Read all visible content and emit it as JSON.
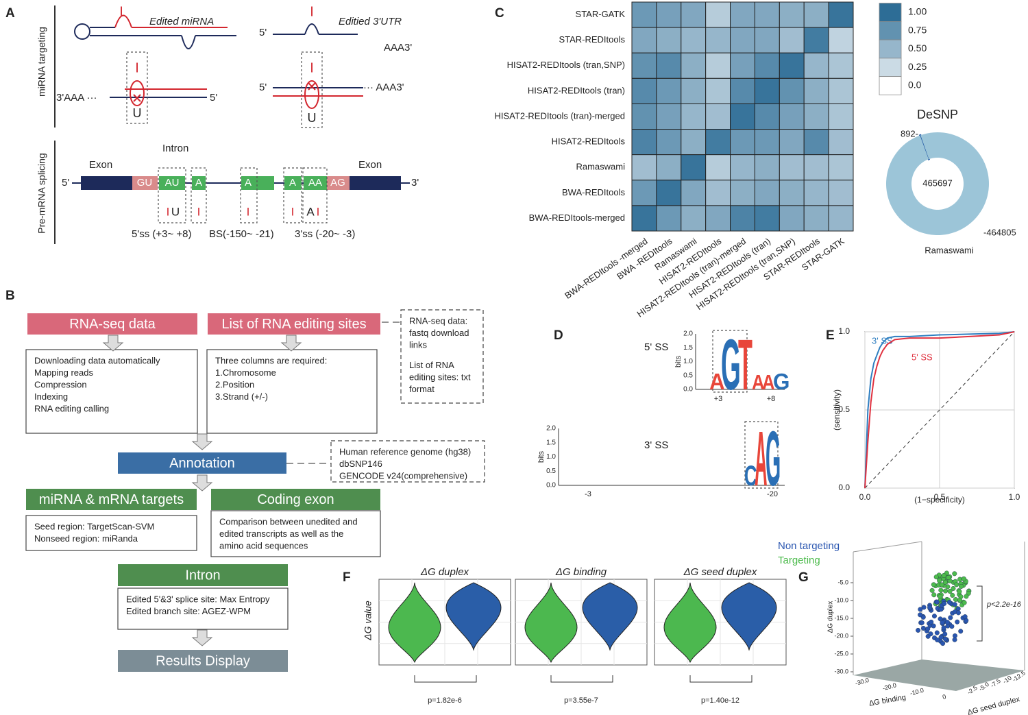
{
  "panel_labels": [
    "A",
    "B",
    "C",
    "D",
    "E",
    "F",
    "G"
  ],
  "panel_a": {
    "labels": [
      "I",
      "Edited  miRNA",
      "I",
      "Editied 3'UTR",
      "5'",
      "AAA3'",
      "I",
      "3'AAA ···",
      "5'",
      "U",
      "I",
      "5'",
      "··· AAA3'",
      "U",
      "miRNA targeting",
      "Pre-mRNA splicing",
      "Intron",
      "Exon",
      "Exon",
      "5'",
      "3'",
      "GU",
      "AU",
      "A",
      "A",
      "A",
      "AA",
      "AG",
      "I",
      "U",
      "I",
      "I",
      "I",
      "A",
      "I",
      "5'ss (+3~ +8)",
      "BS(-150~ -21)",
      "3'ss (-20~ -3)"
    ]
  },
  "flowchart": {
    "nodes": [
      {
        "label": "RNA-seq data"
      },
      {
        "label": "List of RNA editing sites"
      },
      {
        "lines": [
          "Downloading data automatically",
          "Mapping reads",
          "Compression",
          "Indexing",
          "RNA editing calling"
        ]
      },
      {
        "lines": [
          "Three columns are required:",
          "1.Chromosome",
          "2.Position",
          "3.Strand (+/-)"
        ]
      },
      {
        "lines": [
          "RNA-seq data:",
          "fastq download",
          "links",
          "List of RNA",
          "editing sites: txt",
          "format"
        ]
      },
      {
        "label": "Annotation"
      },
      {
        "lines": [
          "Human reference genome (hg38)",
          "dbSNP146",
          "GENCODE v24(comprehensive)"
        ]
      },
      {
        "label": "miRNA & mRNA targets"
      },
      {
        "label": "Coding exon"
      },
      {
        "lines": [
          "Seed region: TargetScan-SVM",
          "Nonseed region:  miRanda"
        ]
      },
      {
        "lines": [
          "Comparison between unedited and",
          "edited transcripts as well as the",
          "amino acid sequences"
        ]
      },
      {
        "label": "Intron"
      },
      {
        "lines": [
          "Edited 5'&3' splice site: Max Entropy",
          "Edited branch site:  AGEZ-WPM"
        ]
      },
      {
        "label": "Results Display"
      }
    ]
  },
  "panel_d": {
    "logos": [
      {
        "title": "5' SS",
        "axis_label": "bits",
        "yticks": [
          "2.0",
          "1.5",
          "1.0",
          "0.5",
          "0.0"
        ],
        "xlabels": [
          "+3",
          "+8"
        ],
        "letters": [
          "A",
          "G",
          "T",
          "A",
          "A",
          "G"
        ]
      },
      {
        "title": "3' SS",
        "axis_label": "bits",
        "yticks": [
          "2.0",
          "1.5",
          "1.0",
          "0.5",
          "0.0"
        ],
        "xlabels": [
          "-3",
          "-20"
        ],
        "letters": [
          "C",
          "A",
          "G"
        ]
      }
    ]
  },
  "chart_data": [
    {
      "type": "heatmap",
      "rows": [
        "STAR-GATK",
        "STAR-REDItools",
        "HISAT2-REDItools (tran,SNP)",
        "HISAT2-REDItools (tran)",
        "HISAT2-REDItools (tran)-merged",
        "HISAT2-REDItools",
        "Ramaswami",
        "BWA-REDItools",
        "BWA-REDItools-merged"
      ],
      "columns": [
        "BWA-REDItools -merged",
        "BWA -REDItools",
        "Ramaswami",
        "HISAT2-REDItools",
        "HISAT2-REDItools (tran)-merged",
        "HISAT2-REDItools (tran)",
        "HISAT2-REDItools (tran,SNP)",
        "STAR-REDItools",
        "STAR-GATK"
      ],
      "values": [
        [
          0.7,
          0.65,
          0.6,
          0.35,
          0.6,
          0.6,
          0.55,
          0.55,
          0.95
        ],
        [
          0.6,
          0.55,
          0.5,
          0.5,
          0.6,
          0.6,
          0.45,
          0.9,
          0.3
        ],
        [
          0.75,
          0.8,
          0.55,
          0.35,
          0.65,
          0.8,
          0.95,
          0.5,
          0.4
        ],
        [
          0.8,
          0.7,
          0.55,
          0.4,
          0.8,
          0.95,
          0.75,
          0.55,
          0.4
        ],
        [
          0.75,
          0.65,
          0.5,
          0.45,
          0.95,
          0.8,
          0.65,
          0.55,
          0.4
        ],
        [
          0.85,
          0.7,
          0.55,
          0.9,
          0.7,
          0.7,
          0.6,
          0.8,
          0.45
        ],
        [
          0.45,
          0.55,
          0.95,
          0.35,
          0.5,
          0.55,
          0.45,
          0.45,
          0.4
        ],
        [
          0.7,
          0.95,
          0.6,
          0.45,
          0.55,
          0.6,
          0.55,
          0.5,
          0.45
        ],
        [
          0.95,
          0.7,
          0.55,
          0.6,
          0.85,
          0.9,
          0.6,
          0.55,
          0.5
        ]
      ],
      "colorbar": {
        "lim": [
          0,
          1
        ],
        "ticks": [
          {
            "value": 1,
            "label": "1.00"
          },
          0.75,
          {
            "value": 0.5,
            "label": "0.50"
          },
          0.25,
          {
            "value": 0,
            "label": "0.0"
          }
        ],
        "colors": [
          "#ffffff",
          "#2d6d96"
        ]
      }
    },
    {
      "type": "pie",
      "title": "DeSNP",
      "caption": "Ramaswami",
      "values": [
        892,
        464805
      ],
      "value_labels": [
        "892-",
        "-464805"
      ],
      "center_value": 465697,
      "colors": [
        "#1f57a4",
        "#9cc5d8"
      ],
      "hole": true
    },
    {
      "type": "line",
      "xlabel": "(1−specificity)",
      "ylabel": "(sensitivity)",
      "xlim": [
        0,
        1
      ],
      "ylim": [
        0,
        1
      ],
      "xticks": [
        {
          "value": 0,
          "label": "0.0"
        },
        0.5,
        {
          "value": 1,
          "label": "1.0"
        }
      ],
      "yticks": [
        {
          "value": 0,
          "label": "0.0"
        },
        0.5,
        {
          "value": 1,
          "label": "1.0"
        }
      ],
      "grid": true,
      "x": [
        0,
        0.02,
        0.04,
        0.06,
        0.08,
        0.1,
        0.12,
        0.15,
        0.2,
        0.3,
        0.5,
        0.7,
        0.9,
        1
      ],
      "series": [
        {
          "name": "3' SS",
          "color": "#2f7fc1",
          "values": [
            0,
            0.5,
            0.7,
            0.8,
            0.85,
            0.9,
            0.93,
            0.96,
            0.97,
            0.97,
            0.98,
            0.985,
            0.99,
            1
          ]
        },
        {
          "name": "5' SS",
          "color": "#e0313f",
          "values": [
            0,
            0.3,
            0.55,
            0.7,
            0.78,
            0.84,
            0.88,
            0.92,
            0.95,
            0.96,
            0.96,
            0.97,
            0.98,
            1
          ]
        }
      ]
    },
    {
      "type": "violin",
      "ylabel": "ΔG value",
      "colors": [
        "#4cb84f",
        "#2a5ea8"
      ],
      "panels": [
        {
          "title": "ΔG duplex",
          "p_label": "p=1.82e-6"
        },
        {
          "title": "ΔG binding",
          "p_label": "p=3.55e-7"
        },
        {
          "title": "ΔG seed duplex",
          "p_label": "p=1.40e-12"
        }
      ]
    },
    {
      "type": "scatter3d",
      "ylabel": "ΔG duplex",
      "xlabel": "ΔG binding",
      "zlabel": "ΔG seed duplex",
      "annotation": "p<2.2e-16",
      "ylim": [
        -5,
        -30
      ],
      "yticks": [
        {
          "value": -5,
          "label": "-5.0"
        },
        {
          "value": -10,
          "label": "-10.0"
        },
        {
          "value": -15,
          "label": "-15.0"
        },
        {
          "value": -20,
          "label": "-20.0"
        },
        {
          "value": -25,
          "label": "-25.0"
        },
        {
          "value": -30,
          "label": "-30.0"
        }
      ],
      "xticks": [
        {
          "value": -30,
          "label": "-30.0"
        },
        {
          "value": -20,
          "label": "-20.0"
        },
        {
          "value": -10,
          "label": "-10.0"
        },
        0
      ],
      "zticks": [
        -2.5,
        {
          "value": -5,
          "label": "-5.0"
        },
        -7.5,
        -10,
        -12.5
      ],
      "series": [
        {
          "name": "Non targeting",
          "color": "#2a56b0"
        },
        {
          "name": "Targeting",
          "color": "#4cbb4c"
        }
      ]
    }
  ]
}
